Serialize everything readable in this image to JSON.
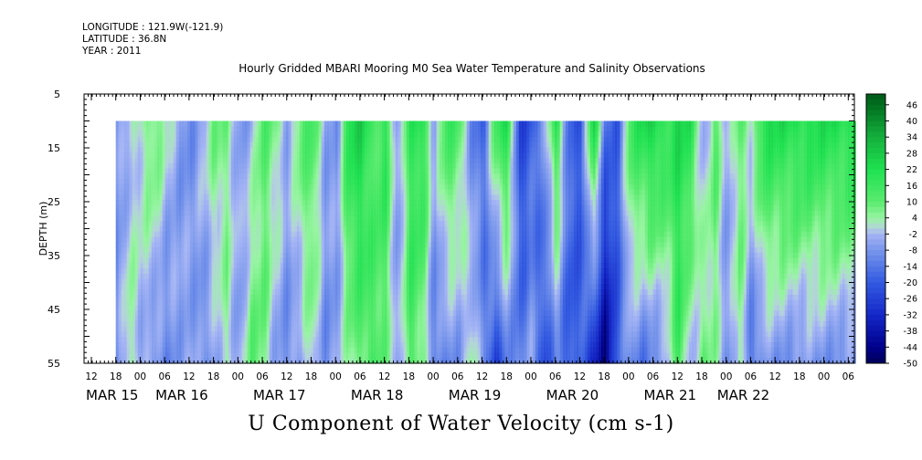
{
  "header": {
    "longitude": "LONGITUDE : 121.9W(-121.9)",
    "latitude": "LATITUDE : 36.8N",
    "year": "YEAR : 2011"
  },
  "title": "Hourly Gridded MBARI Mooring M0 Sea Water Temperature and Salinity Observations",
  "bottom_title": "U Component of Water Velocity (cm s-1)",
  "chart_data": {
    "type": "heatmap",
    "ylabel": "DEPTH (m)",
    "ylim": [
      5,
      55
    ],
    "y_inverted": true,
    "y_ticks": [
      5,
      15,
      25,
      35,
      45,
      55
    ],
    "x_start_hours_offset": 0,
    "x_hour_labels": [
      "12",
      "18",
      "00",
      "06",
      "12",
      "18",
      "00",
      "06",
      "12",
      "18",
      "00",
      "06",
      "12",
      "18",
      "00",
      "06",
      "12",
      "18",
      "00",
      "06",
      "12",
      "18",
      "00",
      "06",
      "12",
      "18",
      "00",
      "06",
      "12",
      "18",
      "00",
      "06"
    ],
    "x_date_labels": [
      "MAR 15",
      "MAR 16",
      "MAR 17",
      "MAR 18",
      "MAR 19",
      "MAR 20",
      "MAR 21",
      "MAR 22"
    ],
    "data_top_depth": 10,
    "data_start_label": "MAR 15 18:00",
    "colorbar": {
      "min": -50,
      "max": 50,
      "labels": [
        "46",
        "40",
        "34",
        "28",
        "22",
        "16",
        "10",
        "4",
        "-2",
        "-8",
        "-14",
        "-20",
        "-26",
        "-32",
        "-38",
        "-44",
        "-50"
      ]
    },
    "profiles": [
      {
        "time": "MAR 15 18",
        "surface": -8,
        "deep": -10
      },
      {
        "time": "MAR 15 21",
        "surface": -4,
        "deep": 6
      },
      {
        "time": "MAR 16 00",
        "surface": 4,
        "deep": -4
      },
      {
        "time": "MAR 16 03",
        "surface": 10,
        "deep": -8
      },
      {
        "time": "MAR 16 06",
        "surface": 2,
        "deep": -12
      },
      {
        "time": "MAR 16 09",
        "surface": -6,
        "deep": -6
      },
      {
        "time": "MAR 16 12",
        "surface": -10,
        "deep": -4
      },
      {
        "time": "MAR 16 15",
        "surface": -2,
        "deep": -10
      },
      {
        "time": "MAR 16 18",
        "surface": 8,
        "deep": -6
      },
      {
        "time": "MAR 16 21",
        "surface": 6,
        "deep": 4
      },
      {
        "time": "MAR 17 00",
        "surface": -6,
        "deep": -8
      },
      {
        "time": "MAR 17 03",
        "surface": -4,
        "deep": 10
      },
      {
        "time": "MAR 17 06",
        "surface": 12,
        "deep": 8
      },
      {
        "time": "MAR 17 09",
        "surface": 6,
        "deep": -6
      },
      {
        "time": "MAR 17 12",
        "surface": -4,
        "deep": -10
      },
      {
        "time": "MAR 17 15",
        "surface": 10,
        "deep": -6
      },
      {
        "time": "MAR 17 18",
        "surface": 14,
        "deep": 4
      },
      {
        "time": "MAR 17 21",
        "surface": -4,
        "deep": -10
      },
      {
        "time": "MAR 18 00",
        "surface": -8,
        "deep": -6
      },
      {
        "time": "MAR 18 03",
        "surface": 22,
        "deep": 4
      },
      {
        "time": "MAR 18 06",
        "surface": 26,
        "deep": 10
      },
      {
        "time": "MAR 18 09",
        "surface": 12,
        "deep": 14
      },
      {
        "time": "MAR 18 12",
        "surface": 20,
        "deep": 8
      },
      {
        "time": "MAR 18 15",
        "surface": -10,
        "deep": -8
      },
      {
        "time": "MAR 18 18",
        "surface": 18,
        "deep": 14
      },
      {
        "time": "MAR 18 21",
        "surface": 22,
        "deep": 6
      },
      {
        "time": "MAR 19 00",
        "surface": -4,
        "deep": -14
      },
      {
        "time": "MAR 19 03",
        "surface": 16,
        "deep": -10
      },
      {
        "time": "MAR 19 06",
        "surface": 12,
        "deep": -8
      },
      {
        "time": "MAR 19 09",
        "surface": -10,
        "deep": 4
      },
      {
        "time": "MAR 19 12",
        "surface": -18,
        "deep": -10
      },
      {
        "time": "MAR 19 15",
        "surface": 14,
        "deep": -26
      },
      {
        "time": "MAR 19 18",
        "surface": 22,
        "deep": -10
      },
      {
        "time": "MAR 19 21",
        "surface": -26,
        "deep": -14
      },
      {
        "time": "MAR 20 00",
        "surface": -20,
        "deep": -6
      },
      {
        "time": "MAR 20 03",
        "surface": -8,
        "deep": -24
      },
      {
        "time": "MAR 20 06",
        "surface": 20,
        "deep": -10
      },
      {
        "time": "MAR 20 09",
        "surface": -16,
        "deep": -22
      },
      {
        "time": "MAR 20 12",
        "surface": -22,
        "deep": -18
      },
      {
        "time": "MAR 20 15",
        "surface": 26,
        "deep": -30
      },
      {
        "time": "MAR 20 18",
        "surface": -14,
        "deep": -46
      },
      {
        "time": "MAR 20 21",
        "surface": -20,
        "deep": -20
      },
      {
        "time": "MAR 21 00",
        "surface": 14,
        "deep": -8
      },
      {
        "time": "MAR 21 03",
        "surface": 22,
        "deep": -14
      },
      {
        "time": "MAR 21 06",
        "surface": 26,
        "deep": -10
      },
      {
        "time": "MAR 21 09",
        "surface": 18,
        "deep": -6
      },
      {
        "time": "MAR 21 12",
        "surface": 24,
        "deep": 16
      },
      {
        "time": "MAR 21 15",
        "surface": 20,
        "deep": -4
      },
      {
        "time": "MAR 21 18",
        "surface": -6,
        "deep": 8
      },
      {
        "time": "MAR 21 21",
        "surface": 12,
        "deep": 4
      },
      {
        "time": "MAR 22 00",
        "surface": -6,
        "deep": -10
      },
      {
        "time": "MAR 22 03",
        "surface": 10,
        "deep": 6
      },
      {
        "time": "MAR 22 06",
        "surface": 4,
        "deep": -16
      },
      {
        "time": "MAR 22 09",
        "surface": 22,
        "deep": -8
      }
    ]
  }
}
